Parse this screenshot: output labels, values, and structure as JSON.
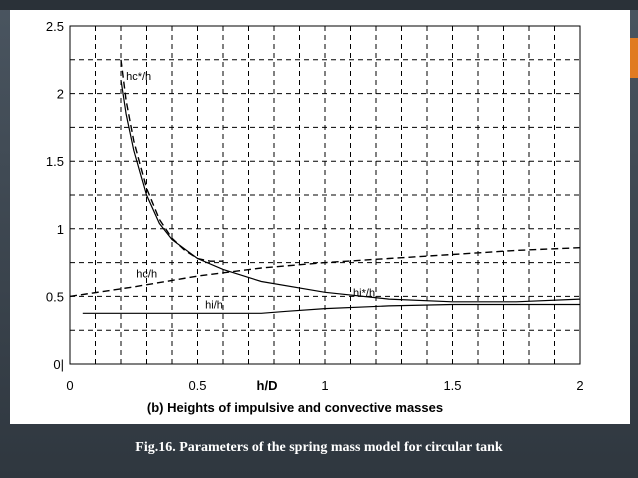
{
  "slide": {
    "caption": "Fig.16. Parameters of the spring mass model for circular tank",
    "accent_color": "#e07b22",
    "background_color": "#3b444c"
  },
  "chart_data": {
    "type": "line",
    "title": "",
    "xlabel_center": "h/D",
    "subtitle": "(b) Heights of impulsive and convective masses",
    "xlim": [
      0,
      2
    ],
    "ylim": [
      0,
      2.5
    ],
    "x_ticks": [
      "0",
      "0.5",
      "1",
      "1.5",
      "2"
    ],
    "y_ticks": [
      "0|",
      "0.5",
      "1",
      "1.5",
      "2",
      "2.5"
    ],
    "grid": true,
    "series": [
      {
        "name": "hc*/h",
        "style": "dashed",
        "x": [
          0.2,
          0.22,
          0.25,
          0.3,
          0.35,
          0.4,
          0.45,
          0.5,
          0.55,
          0.6
        ],
        "y": [
          2.25,
          1.95,
          1.65,
          1.3,
          1.07,
          0.93,
          0.84,
          0.78,
          0.76,
          0.76
        ]
      },
      {
        "name": "hc/h",
        "style": "dashed",
        "x": [
          0,
          0.25,
          0.5,
          0.75,
          1.0,
          1.25,
          1.5,
          1.75,
          2.0
        ],
        "y": [
          0.5,
          0.57,
          0.65,
          0.71,
          0.75,
          0.78,
          0.81,
          0.84,
          0.86
        ]
      },
      {
        "name": "hi*/h",
        "style": "solid",
        "x": [
          0.2,
          0.22,
          0.25,
          0.3,
          0.35,
          0.4,
          0.5,
          0.6,
          0.75,
          1.0,
          1.25,
          1.5,
          1.75,
          2.0
        ],
        "y": [
          2.1,
          1.85,
          1.58,
          1.25,
          1.04,
          0.92,
          0.78,
          0.7,
          0.61,
          0.53,
          0.48,
          0.46,
          0.46,
          0.48
        ]
      },
      {
        "name": "hi/h",
        "style": "solid",
        "x": [
          0.05,
          0.25,
          0.5,
          0.75,
          0.85,
          1.0,
          1.25,
          1.5,
          1.75,
          2.0
        ],
        "y": [
          0.375,
          0.375,
          0.375,
          0.375,
          0.39,
          0.41,
          0.43,
          0.44,
          0.44,
          0.44
        ]
      }
    ],
    "annotations": [
      {
        "text": "hc*/h",
        "x": 0.22,
        "y": 2.1
      },
      {
        "text": "hc/h",
        "x": 0.26,
        "y": 0.64
      },
      {
        "text": "hi*/h",
        "x": 1.11,
        "y": 0.5
      },
      {
        "text": "hi/h",
        "x": 0.53,
        "y": 0.41
      }
    ]
  }
}
